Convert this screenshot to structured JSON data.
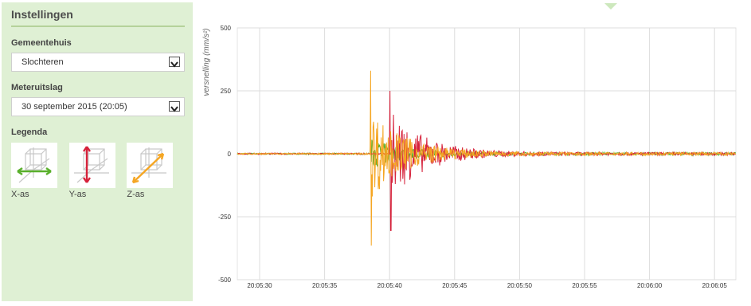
{
  "sidebar": {
    "title": "Instellingen",
    "gemeentehuis": {
      "label": "Gemeentehuis",
      "value": "Slochteren"
    },
    "meteruitslag": {
      "label": "Meteruitslag",
      "value": "30 september 2015 (20:05)"
    },
    "legenda": {
      "label": "Legenda",
      "items": [
        {
          "label": "X-as",
          "color": "#5ab02c"
        },
        {
          "label": "Y-as",
          "color": "#d6213a"
        },
        {
          "label": "Z-as",
          "color": "#f5a623"
        }
      ]
    }
  },
  "chart_data": {
    "type": "line",
    "ylabel": "versnelling (mm/s²)",
    "ylim": [
      -500,
      500
    ],
    "yticks": [
      "500",
      "250",
      "0",
      "-250",
      "-500"
    ],
    "xticks": [
      "20:05:30",
      "20:05:35",
      "20:05:40",
      "20:05:45",
      "20:05:50",
      "20:05:55",
      "20:06:00",
      "20:06:05"
    ],
    "grid": true,
    "series": [
      {
        "color": "#5ab02c",
        "peak": 60,
        "onset_s": 8.5
      },
      {
        "color": "#d6213a",
        "peak": 250,
        "trough": -305,
        "onset_s": 10.0
      },
      {
        "color": "#f5a623",
        "peak": 330,
        "trough": -365,
        "onset_s": 8.5
      }
    ]
  }
}
